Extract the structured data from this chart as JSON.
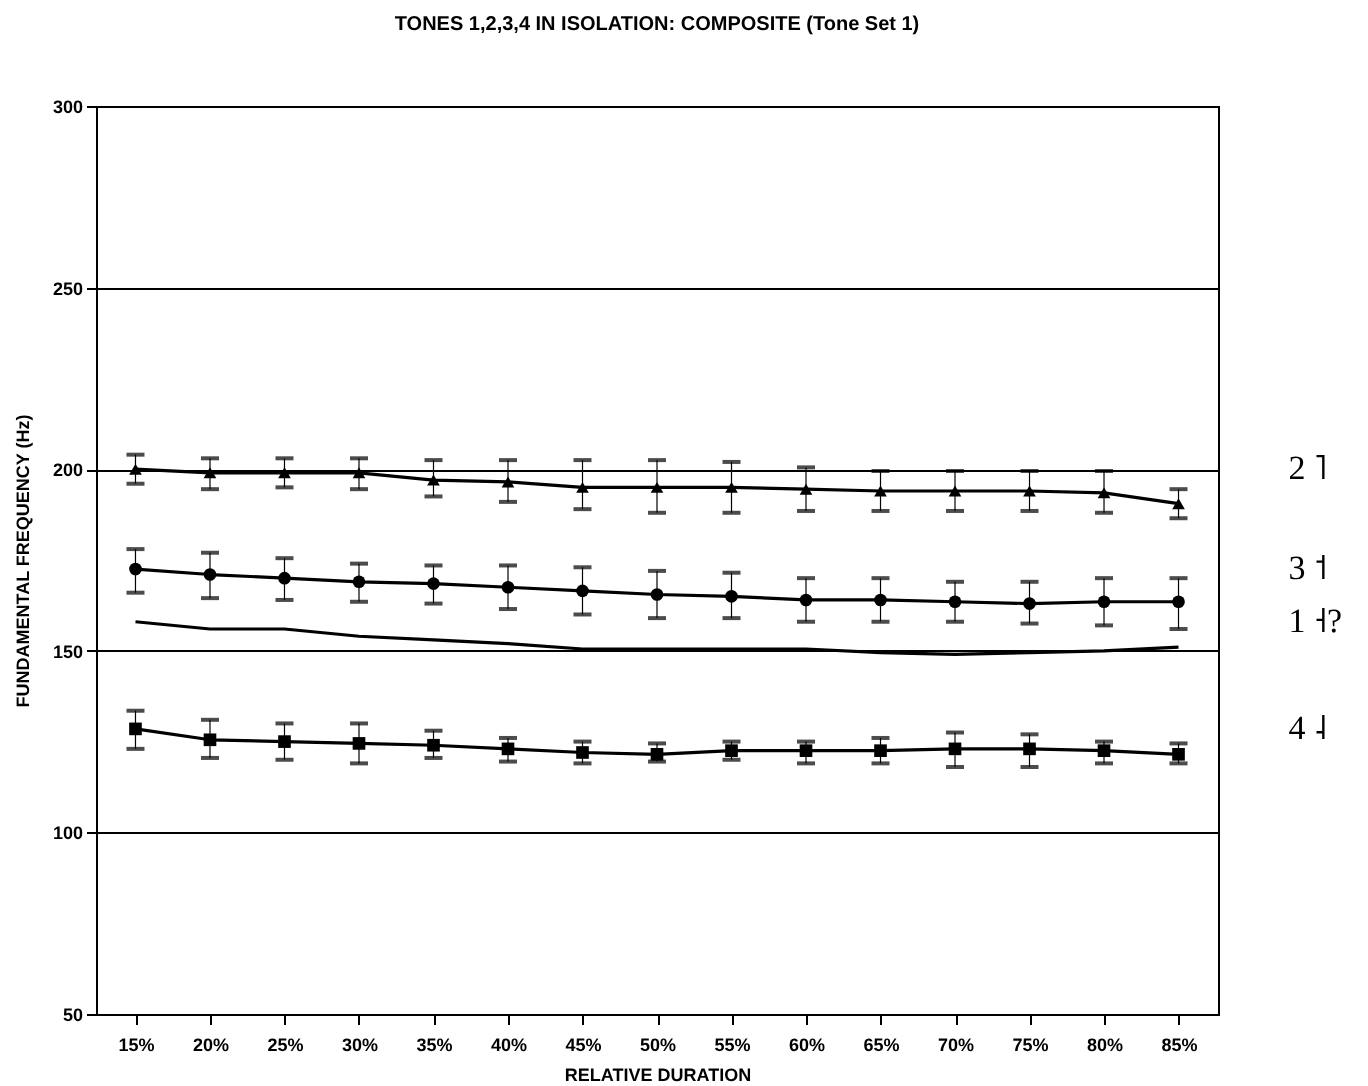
{
  "chart_data": {
    "type": "line",
    "title": "TONES 1,2,3,4 IN ISOLATION:  COMPOSITE (Tone Set 1)",
    "xlabel": "RELATIVE DURATION",
    "ylabel": "FUNDAMENTAL FREQUENCY (Hz)",
    "categories": [
      "15%",
      "20%",
      "25%",
      "30%",
      "35%",
      "40%",
      "45%",
      "50%",
      "55%",
      "60%",
      "65%",
      "70%",
      "75%",
      "80%",
      "85%"
    ],
    "ylim": [
      50,
      300
    ],
    "yticks": [
      50,
      100,
      150,
      200,
      250,
      300
    ],
    "grid": "y",
    "legend": false,
    "series": [
      {
        "name": "2 ˥",
        "color": "#000000",
        "marker": "triangle",
        "values": [
          200,
          199,
          199,
          199,
          197,
          196.5,
          195,
          195,
          195,
          194.5,
          194,
          194,
          194,
          193.5,
          190.5
        ],
        "errors": [
          [
            196,
            204
          ],
          [
            194.5,
            203
          ],
          [
            195,
            203
          ],
          [
            194.5,
            203
          ],
          [
            192.5,
            202.5
          ],
          [
            191,
            202.5
          ],
          [
            189,
            202.5
          ],
          [
            188,
            202.5
          ],
          [
            188,
            202
          ],
          [
            188.5,
            200.5
          ],
          [
            188.5,
            199.5
          ],
          [
            188.5,
            199.5
          ],
          [
            188.5,
            199.5
          ],
          [
            188,
            199.5
          ],
          [
            186.5,
            194.5
          ]
        ]
      },
      {
        "name": "3 ˦",
        "color": "#000000",
        "marker": "circle",
        "values": [
          172.5,
          171,
          170,
          169,
          168.5,
          167.5,
          166.5,
          165.5,
          165,
          164,
          164,
          163.5,
          163,
          163.5,
          163.5
        ],
        "errors": [
          [
            166,
            178
          ],
          [
            164.5,
            177
          ],
          [
            164,
            175.5
          ],
          [
            163.5,
            174
          ],
          [
            163,
            173.5
          ],
          [
            161.5,
            173.5
          ],
          [
            160,
            173
          ],
          [
            159,
            172
          ],
          [
            159,
            171.5
          ],
          [
            158,
            170
          ],
          [
            158,
            170
          ],
          [
            158,
            169
          ],
          [
            157.5,
            169
          ],
          [
            157,
            170
          ],
          [
            156,
            170
          ]
        ]
      },
      {
        "name": "1 ˧?",
        "color": "#000000",
        "marker": "none",
        "values": [
          158,
          156,
          156,
          154,
          153,
          152,
          150.5,
          150.5,
          150.5,
          150.5,
          149.5,
          149,
          149.5,
          150,
          151
        ]
      },
      {
        "name": "4 ˨",
        "color": "#000000",
        "marker": "square",
        "values": [
          128.5,
          125.5,
          125,
          124.5,
          124,
          123,
          122,
          121.5,
          122.5,
          122.5,
          122.5,
          123,
          123,
          122.5,
          121.5
        ],
        "errors": [
          [
            123,
            133.5
          ],
          [
            120.5,
            131
          ],
          [
            120,
            130
          ],
          [
            119,
            130
          ],
          [
            120.5,
            128
          ],
          [
            119.5,
            126
          ],
          [
            119,
            125
          ],
          [
            119.5,
            124.5
          ],
          [
            120,
            125
          ],
          [
            119,
            125
          ],
          [
            119,
            126
          ],
          [
            118,
            127.5
          ],
          [
            118,
            127
          ],
          [
            119,
            125
          ],
          [
            119,
            124.5
          ]
        ]
      }
    ]
  }
}
